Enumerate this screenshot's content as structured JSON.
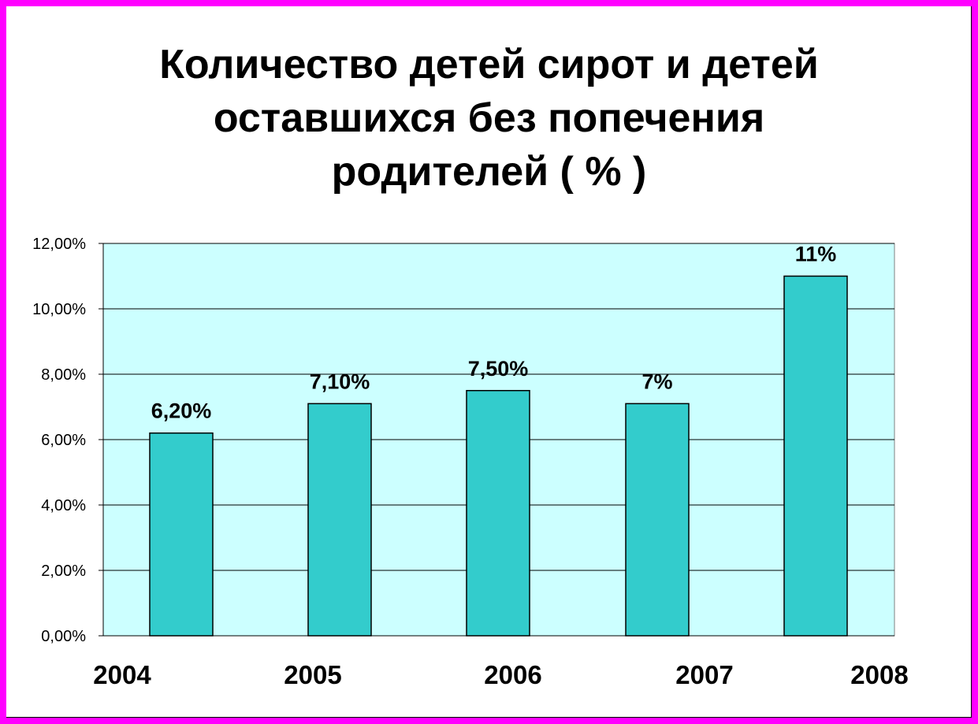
{
  "chart_data": {
    "type": "bar",
    "title_lines": [
      "Количество детей сирот и детей",
      "оставшихся без попечения",
      "родителей ( % )"
    ],
    "categories": [
      "2004",
      "2005",
      "2006",
      "2007",
      "2008"
    ],
    "values": [
      6.2,
      7.1,
      7.5,
      7.1,
      11.0
    ],
    "data_labels": [
      "6,20%",
      "7,10%",
      "7,50%",
      "7%",
      "11%"
    ],
    "ylim": [
      0,
      12
    ],
    "y_ticks": [
      0,
      2,
      4,
      6,
      8,
      10,
      12
    ],
    "y_tick_labels": [
      "0,00%",
      "2,00%",
      "4,00%",
      "6,00%",
      "8,00%",
      "10,00%",
      "12,00%"
    ],
    "grid": true,
    "colors": {
      "bar": "#33cccc",
      "plot_background": "#ccffff",
      "page_border": "#ff00ff"
    }
  }
}
